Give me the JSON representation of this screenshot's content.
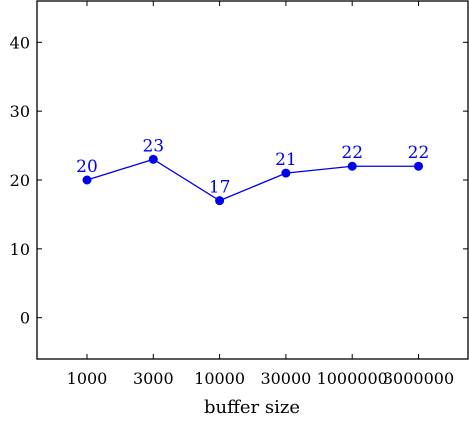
{
  "chart_data": {
    "type": "line",
    "categories": [
      "1000",
      "3000",
      "10000",
      "30000",
      "1000000",
      "3000000"
    ],
    "series": [
      {
        "values": [
          20,
          23,
          17,
          21,
          22,
          22
        ]
      }
    ],
    "data_labels": [
      "20",
      "23",
      "17",
      "21",
      "22",
      "22"
    ],
    "xlabel": "buffer size",
    "ylabel": "",
    "title": "",
    "ylim": [
      -6,
      46
    ],
    "yticks": [
      0,
      10,
      20,
      30,
      40
    ],
    "grid": false,
    "legend": "none",
    "series_color": "#0000ee",
    "axis_color": "#000000"
  }
}
